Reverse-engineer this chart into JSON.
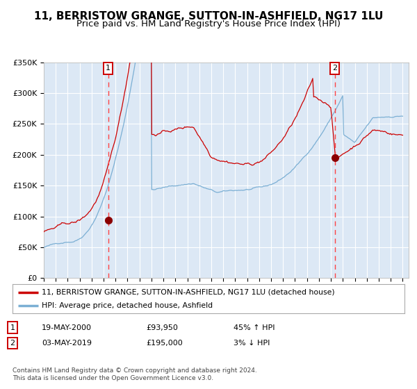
{
  "title": "11, BERRISTOW GRANGE, SUTTON-IN-ASHFIELD, NG17 1LU",
  "subtitle": "Price paid vs. HM Land Registry's House Price Index (HPI)",
  "ylim": [
    0,
    350000
  ],
  "yticks": [
    0,
    50000,
    100000,
    150000,
    200000,
    250000,
    300000,
    350000
  ],
  "ytick_labels": [
    "£0",
    "£50K",
    "£100K",
    "£150K",
    "£200K",
    "£250K",
    "£300K",
    "£350K"
  ],
  "x_start_year": 1995,
  "x_end_year": 2025,
  "bg_color": "#dce8f5",
  "red_line_color": "#cc0000",
  "blue_line_color": "#7bafd4",
  "marker_color": "#8b0000",
  "vline_color": "#ff4444",
  "grid_color": "#ffffff",
  "title_fontsize": 11,
  "subtitle_fontsize": 9.5,
  "sale1_year": 2000.38,
  "sale1_price": 93950,
  "sale2_year": 2019.33,
  "sale2_price": 195000,
  "legend_label1": "11, BERRISTOW GRANGE, SUTTON-IN-ASHFIELD, NG17 1LU (detached house)",
  "legend_label2": "HPI: Average price, detached house, Ashfield",
  "annot1_date": "19-MAY-2000",
  "annot1_price": "£93,950",
  "annot1_hpi": "45% ↑ HPI",
  "annot2_date": "03-MAY-2019",
  "annot2_price": "£195,000",
  "annot2_hpi": "3% ↓ HPI",
  "footer": "Contains HM Land Registry data © Crown copyright and database right 2024.\nThis data is licensed under the Open Government Licence v3.0."
}
